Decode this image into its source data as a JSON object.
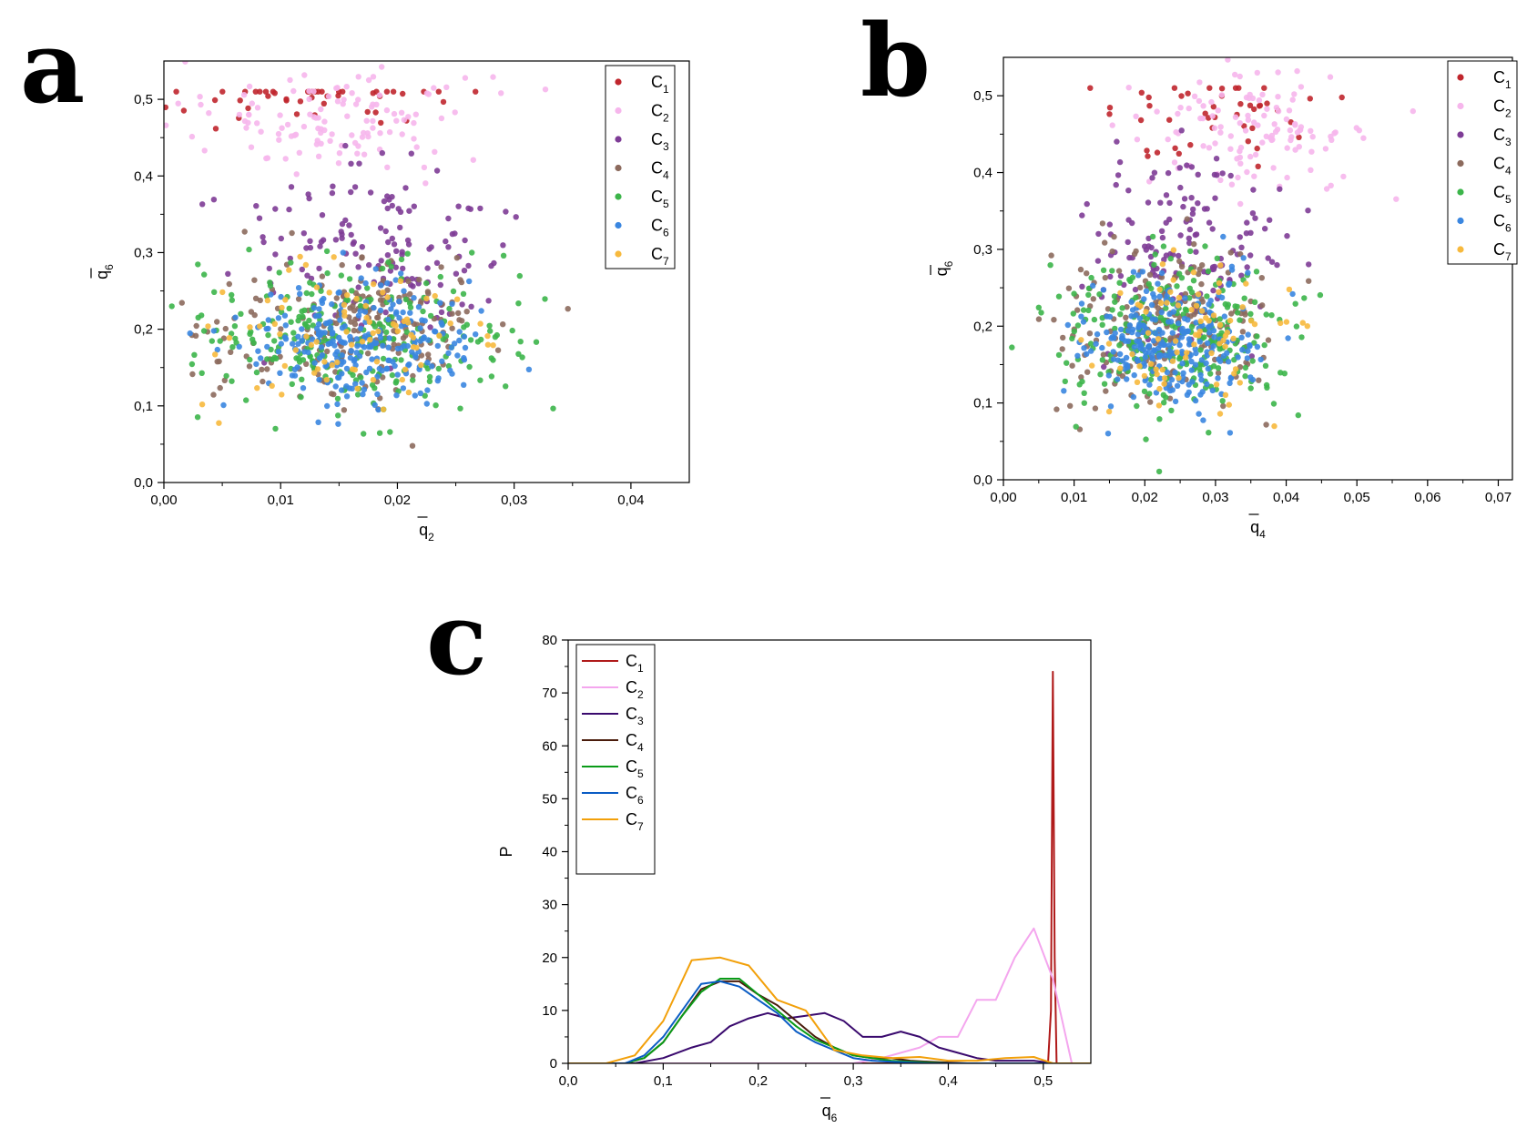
{
  "panels": [
    {
      "letter": "a",
      "type": "scatter",
      "xlabel": "q",
      "xlabel_sub": "2",
      "ylabel": "q",
      "ylabel_sub": "6",
      "xlim": [
        0,
        0.045
      ],
      "ylim": [
        0,
        0.55
      ],
      "xticks": [
        {
          "v": 0,
          "label": "0,00"
        },
        {
          "v": 0.01,
          "label": "0,01"
        },
        {
          "v": 0.02,
          "label": "0,02"
        },
        {
          "v": 0.03,
          "label": "0,03"
        },
        {
          "v": 0.04,
          "label": "0,04"
        }
      ],
      "yticks": [
        {
          "v": 0,
          "label": "0,0"
        },
        {
          "v": 0.1,
          "label": "0,1"
        },
        {
          "v": 0.2,
          "label": "0,2"
        },
        {
          "v": 0.3,
          "label": "0,3"
        },
        {
          "v": 0.4,
          "label": "0,4"
        },
        {
          "v": 0.5,
          "label": "0,5"
        }
      ],
      "legend_position": "top-right"
    },
    {
      "letter": "b",
      "type": "scatter",
      "xlabel": "q",
      "xlabel_sub": "4",
      "ylabel": "q",
      "ylabel_sub": "6",
      "xlim": [
        0,
        0.072
      ],
      "ylim": [
        0,
        0.55
      ],
      "xticks": [
        {
          "v": 0,
          "label": "0,00"
        },
        {
          "v": 0.01,
          "label": "0,01"
        },
        {
          "v": 0.02,
          "label": "0,02"
        },
        {
          "v": 0.03,
          "label": "0,03"
        },
        {
          "v": 0.04,
          "label": "0,04"
        },
        {
          "v": 0.05,
          "label": "0,05"
        },
        {
          "v": 0.06,
          "label": "0,06"
        },
        {
          "v": 0.07,
          "label": "0,07"
        }
      ],
      "yticks": [
        {
          "v": 0,
          "label": "0,0"
        },
        {
          "v": 0.1,
          "label": "0,1"
        },
        {
          "v": 0.2,
          "label": "0,2"
        },
        {
          "v": 0.3,
          "label": "0,3"
        },
        {
          "v": 0.4,
          "label": "0,4"
        },
        {
          "v": 0.5,
          "label": "0,5"
        }
      ],
      "legend_position": "top-right"
    },
    {
      "letter": "c",
      "type": "line",
      "xlabel": "q",
      "xlabel_sub": "6",
      "ylabel": "P",
      "ylabel_sub": "",
      "xlim": [
        0,
        0.55
      ],
      "ylim": [
        0,
        80
      ],
      "xticks": [
        {
          "v": 0,
          "label": "0,0"
        },
        {
          "v": 0.1,
          "label": "0,1"
        },
        {
          "v": 0.2,
          "label": "0,2"
        },
        {
          "v": 0.3,
          "label": "0,3"
        },
        {
          "v": 0.4,
          "label": "0,4"
        },
        {
          "v": 0.5,
          "label": "0,5"
        }
      ],
      "yticks": [
        {
          "v": 0,
          "label": "0"
        },
        {
          "v": 10,
          "label": "10"
        },
        {
          "v": 20,
          "label": "20"
        },
        {
          "v": 30,
          "label": "30"
        },
        {
          "v": 40,
          "label": "40"
        },
        {
          "v": 50,
          "label": "50"
        },
        {
          "v": 60,
          "label": "60"
        },
        {
          "v": 70,
          "label": "70"
        },
        {
          "v": 80,
          "label": "80"
        }
      ],
      "legend_position": "top-left"
    }
  ],
  "chart_data": [
    {
      "type": "scatter",
      "panel": "a",
      "xlabel": "q2 (mean)",
      "ylabel": "q6 (mean)",
      "xlim": [
        0,
        0.045
      ],
      "ylim": [
        0,
        0.55
      ],
      "series": [
        {
          "name": "C",
          "sub": "1",
          "color": "#c0262d",
          "center": [
            0.012,
            0.505
          ],
          "spread": [
            0.008,
            0.02
          ],
          "count": 50
        },
        {
          "name": "C",
          "sub": "2",
          "color": "#f6b6ec",
          "center": [
            0.015,
            0.47
          ],
          "spread": [
            0.007,
            0.03
          ],
          "count": 120
        },
        {
          "name": "C",
          "sub": "3",
          "color": "#7e3c96",
          "center": [
            0.018,
            0.3
          ],
          "spread": [
            0.006,
            0.06
          ],
          "count": 150
        },
        {
          "name": "C",
          "sub": "4",
          "color": "#8c6a5d",
          "center": [
            0.016,
            0.2
          ],
          "spread": [
            0.006,
            0.05
          ],
          "count": 200
        },
        {
          "name": "C",
          "sub": "5",
          "color": "#3cb54a",
          "center": [
            0.016,
            0.19
          ],
          "spread": [
            0.007,
            0.05
          ],
          "count": 260
        },
        {
          "name": "C",
          "sub": "6",
          "color": "#3a86e0",
          "center": [
            0.017,
            0.18
          ],
          "spread": [
            0.005,
            0.04
          ],
          "count": 260
        },
        {
          "name": "C",
          "sub": "7",
          "color": "#f7b93d",
          "center": [
            0.017,
            0.19
          ],
          "spread": [
            0.006,
            0.05
          ],
          "count": 80
        }
      ]
    },
    {
      "type": "scatter",
      "panel": "b",
      "xlabel": "q4 (mean)",
      "ylabel": "q6 (mean)",
      "xlim": [
        0,
        0.072
      ],
      "ylim": [
        0,
        0.55
      ],
      "series": [
        {
          "name": "C",
          "sub": "1",
          "color": "#c0262d",
          "center": [
            0.03,
            0.47
          ],
          "spread": [
            0.008,
            0.03
          ],
          "count": 45
        },
        {
          "name": "C",
          "sub": "2",
          "color": "#f6b6ec",
          "center": [
            0.035,
            0.45
          ],
          "spread": [
            0.008,
            0.04
          ],
          "count": 120
        },
        {
          "name": "C",
          "sub": "3",
          "color": "#7e3c96",
          "center": [
            0.025,
            0.3
          ],
          "spread": [
            0.007,
            0.06
          ],
          "count": 150
        },
        {
          "name": "C",
          "sub": "4",
          "color": "#8c6a5d",
          "center": [
            0.023,
            0.2
          ],
          "spread": [
            0.007,
            0.05
          ],
          "count": 200
        },
        {
          "name": "C",
          "sub": "5",
          "color": "#3cb54a",
          "center": [
            0.024,
            0.19
          ],
          "spread": [
            0.008,
            0.05
          ],
          "count": 260
        },
        {
          "name": "C",
          "sub": "6",
          "color": "#3a86e0",
          "center": [
            0.024,
            0.18
          ],
          "spread": [
            0.006,
            0.04
          ],
          "count": 260
        },
        {
          "name": "C",
          "sub": "7",
          "color": "#f7b93d",
          "center": [
            0.025,
            0.19
          ],
          "spread": [
            0.007,
            0.05
          ],
          "count": 80
        }
      ]
    },
    {
      "type": "line",
      "panel": "c",
      "xlabel": "q6 (mean)",
      "ylabel": "P",
      "xlim": [
        0,
        0.55
      ],
      "ylim": [
        0,
        80
      ],
      "series": [
        {
          "name": "C",
          "sub": "1",
          "color": "#b01a1a",
          "x": [
            0,
            0.505,
            0.508,
            0.51,
            0.512,
            0.514,
            0.55
          ],
          "y": [
            0,
            0,
            10,
            74,
            20,
            0,
            0
          ]
        },
        {
          "name": "C",
          "sub": "2",
          "color": "#f4a6ee",
          "x": [
            0,
            0.3,
            0.33,
            0.35,
            0.37,
            0.39,
            0.41,
            0.43,
            0.45,
            0.47,
            0.49,
            0.51,
            0.53,
            0.55
          ],
          "y": [
            0,
            0,
            1,
            2,
            3,
            5,
            5,
            12,
            12,
            20,
            25.5,
            16,
            0,
            0
          ]
        },
        {
          "name": "C",
          "sub": "3",
          "color": "#3a0a6e",
          "x": [
            0,
            0.07,
            0.1,
            0.13,
            0.15,
            0.17,
            0.19,
            0.21,
            0.23,
            0.25,
            0.27,
            0.29,
            0.31,
            0.33,
            0.35,
            0.37,
            0.39,
            0.41,
            0.43,
            0.45,
            0.47,
            0.49,
            0.51,
            0.55
          ],
          "y": [
            0,
            0,
            1,
            3,
            4,
            7,
            8.5,
            9.5,
            8.5,
            9,
            9.5,
            8,
            5,
            5,
            6,
            5,
            3,
            2,
            1,
            0.5,
            0.5,
            0.5,
            0,
            0
          ]
        },
        {
          "name": "C",
          "sub": "4",
          "color": "#4a1c0c",
          "x": [
            0,
            0.06,
            0.08,
            0.1,
            0.12,
            0.14,
            0.16,
            0.18,
            0.2,
            0.22,
            0.24,
            0.26,
            0.28,
            0.3,
            0.32,
            0.34,
            0.36,
            0.38,
            0.42,
            0.55
          ],
          "y": [
            0,
            0,
            1,
            4,
            9,
            14,
            15.5,
            15.5,
            13,
            11,
            8,
            5,
            3,
            1.5,
            1,
            1,
            0.5,
            0.3,
            0,
            0
          ]
        },
        {
          "name": "C",
          "sub": "5",
          "color": "#0a9b18",
          "x": [
            0,
            0.06,
            0.08,
            0.1,
            0.12,
            0.14,
            0.16,
            0.18,
            0.2,
            0.22,
            0.24,
            0.26,
            0.28,
            0.3,
            0.32,
            0.34,
            0.36,
            0.4,
            0.55
          ],
          "y": [
            0,
            0,
            1,
            4,
            9,
            13.5,
            16,
            16,
            13,
            10,
            7,
            4.5,
            3,
            1.5,
            1,
            0.5,
            0.3,
            0,
            0
          ]
        },
        {
          "name": "C",
          "sub": "6",
          "color": "#0a5cc4",
          "x": [
            0,
            0.06,
            0.08,
            0.1,
            0.12,
            0.14,
            0.16,
            0.18,
            0.2,
            0.22,
            0.24,
            0.26,
            0.28,
            0.3,
            0.32,
            0.34,
            0.38,
            0.55
          ],
          "y": [
            0,
            0,
            1.5,
            5,
            10,
            15,
            15.5,
            14.5,
            12,
            9.5,
            6,
            4,
            2.5,
            1,
            0.5,
            0.3,
            0,
            0
          ]
        },
        {
          "name": "C",
          "sub": "7",
          "color": "#f2a00a",
          "x": [
            0,
            0.04,
            0.07,
            0.1,
            0.13,
            0.16,
            0.19,
            0.22,
            0.25,
            0.28,
            0.31,
            0.34,
            0.37,
            0.4,
            0.43,
            0.46,
            0.49,
            0.51,
            0.55
          ],
          "y": [
            0,
            0,
            1.5,
            8,
            19.5,
            20,
            18.5,
            12,
            10,
            2.5,
            1.5,
            1,
            1.2,
            0.5,
            0.5,
            1,
            1.2,
            0,
            0
          ]
        }
      ]
    }
  ]
}
